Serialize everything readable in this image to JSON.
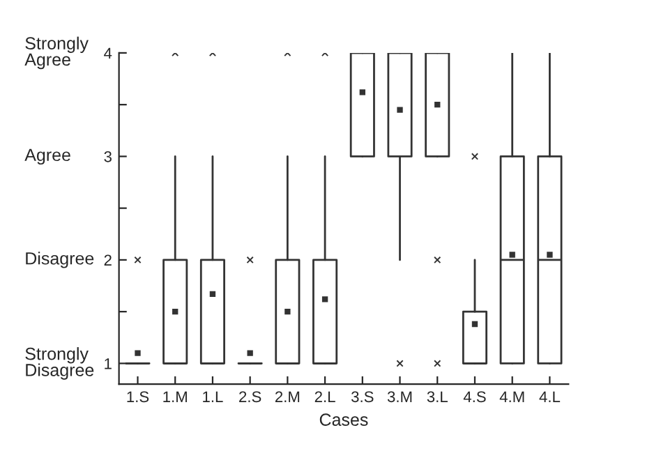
{
  "chart_data": {
    "type": "box",
    "xlabel": "Cases",
    "categories": [
      "1.S",
      "1.M",
      "1.L",
      "2.S",
      "2.M",
      "2.L",
      "3.S",
      "3.M",
      "3.L",
      "4.S",
      "4.M",
      "4.L"
    ],
    "boxes": [
      {
        "low": 1,
        "q1": 1,
        "median": 1,
        "q3": 1,
        "high": 1,
        "mean": 1.1,
        "outliers": [
          2
        ]
      },
      {
        "low": 1,
        "q1": 1,
        "median": 1,
        "q3": 2,
        "high": 3,
        "mean": 1.5,
        "outliers": [
          4
        ]
      },
      {
        "low": 1,
        "q1": 1,
        "median": 1,
        "q3": 2,
        "high": 3,
        "mean": 1.67,
        "outliers": [
          4
        ]
      },
      {
        "low": 1,
        "q1": 1,
        "median": 1,
        "q3": 1,
        "high": 1,
        "mean": 1.1,
        "outliers": [
          2
        ]
      },
      {
        "low": 1,
        "q1": 1,
        "median": 1,
        "q3": 2,
        "high": 3,
        "mean": 1.5,
        "outliers": [
          4
        ]
      },
      {
        "low": 1,
        "q1": 1,
        "median": 1,
        "q3": 2,
        "high": 3,
        "mean": 1.62,
        "outliers": [
          4
        ]
      },
      {
        "low": 3,
        "q1": 3,
        "median": 4,
        "q3": 4,
        "high": 4,
        "mean": 3.62
      },
      {
        "low": 2,
        "q1": 3,
        "median": 4,
        "q3": 4,
        "high": 4,
        "mean": 3.45,
        "outliers": [
          1
        ]
      },
      {
        "low": 3,
        "q1": 3,
        "median": 4,
        "q3": 4,
        "high": 4,
        "mean": 3.5,
        "outliers": [
          2,
          1
        ]
      },
      {
        "low": 1,
        "q1": 1,
        "median": 1,
        "q3": 1.5,
        "high": 2,
        "mean": 1.38,
        "outliers": [
          3
        ]
      },
      {
        "low": 1,
        "q1": 1,
        "median": 2,
        "q3": 3,
        "high": 4,
        "mean": 2.05
      },
      {
        "low": 1,
        "q1": 1,
        "median": 2,
        "q3": 3,
        "high": 4,
        "mean": 2.05
      }
    ],
    "color": "#333333",
    "ylim": [
      0.8,
      4
    ],
    "yticks": [
      1,
      {
        "value": 1.5,
        "label": null
      },
      2,
      {
        "value": 2.5,
        "label": null
      },
      3,
      {
        "value": 3.5,
        "label": null
      },
      4
    ],
    "annotations": [
      "Strongly\nDisagree",
      "Disagree",
      "Agree",
      "Strongly\nAgree"
    ],
    "grid": false
  }
}
